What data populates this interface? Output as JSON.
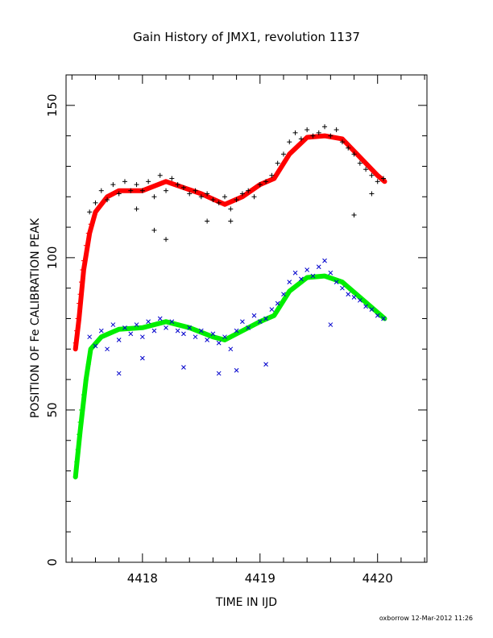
{
  "chart_data": {
    "type": "scatter",
    "title": "Gain History of JMX1, revolution 1137",
    "xlabel": "TIME IN IJD",
    "ylabel": "POSITION OF Fe CALIBRATION PEAK",
    "xlim": [
      4417.35,
      4420.42
    ],
    "ylim": [
      0,
      160
    ],
    "x_ticks": [
      "4418",
      "4419",
      "4420"
    ],
    "y_ticks": [
      "0",
      "50",
      "100",
      "150"
    ],
    "grid": false,
    "footer": "oxborrow 12-Mar-2012 11:26",
    "series": [
      {
        "marker": "+",
        "color": "#000000",
        "points": [
          [
            4417.55,
            115
          ],
          [
            4417.6,
            118
          ],
          [
            4417.65,
            122
          ],
          [
            4417.7,
            119
          ],
          [
            4417.75,
            124
          ],
          [
            4417.8,
            121
          ],
          [
            4417.85,
            125
          ],
          [
            4417.9,
            122
          ],
          [
            4417.95,
            124
          ],
          [
            4418.0,
            122
          ],
          [
            4418.05,
            125
          ],
          [
            4418.1,
            120
          ],
          [
            4418.15,
            127
          ],
          [
            4418.2,
            122
          ],
          [
            4418.25,
            126
          ],
          [
            4418.3,
            124
          ],
          [
            4418.35,
            123
          ],
          [
            4418.4,
            121
          ],
          [
            4418.45,
            122
          ],
          [
            4418.5,
            120
          ],
          [
            4418.55,
            121
          ],
          [
            4418.6,
            119
          ],
          [
            4418.65,
            118
          ],
          [
            4418.7,
            120
          ],
          [
            4418.75,
            116
          ],
          [
            4418.8,
            119
          ],
          [
            4418.85,
            121
          ],
          [
            4418.9,
            122
          ],
          [
            4418.95,
            120
          ],
          [
            4419.0,
            124
          ],
          [
            4419.05,
            125
          ],
          [
            4419.1,
            127
          ],
          [
            4419.15,
            131
          ],
          [
            4419.2,
            134
          ],
          [
            4419.25,
            138
          ],
          [
            4419.3,
            141
          ],
          [
            4419.35,
            139
          ],
          [
            4419.4,
            142
          ],
          [
            4419.45,
            140
          ],
          [
            4419.5,
            141
          ],
          [
            4419.55,
            143
          ],
          [
            4419.6,
            140
          ],
          [
            4419.65,
            142
          ],
          [
            4419.7,
            138
          ],
          [
            4419.75,
            136
          ],
          [
            4419.8,
            134
          ],
          [
            4419.85,
            131
          ],
          [
            4419.9,
            129
          ],
          [
            4419.95,
            127
          ],
          [
            4420.0,
            125
          ],
          [
            4420.05,
            126
          ],
          [
            4417.95,
            116
          ],
          [
            4418.1,
            109
          ],
          [
            4418.2,
            106
          ],
          [
            4418.55,
            112
          ],
          [
            4418.75,
            112
          ],
          [
            4419.8,
            114
          ],
          [
            4419.95,
            121
          ]
        ]
      },
      {
        "marker": "x",
        "color": "#0000cc",
        "points": [
          [
            4417.55,
            74
          ],
          [
            4417.6,
            71
          ],
          [
            4417.65,
            76
          ],
          [
            4417.7,
            70
          ],
          [
            4417.75,
            78
          ],
          [
            4417.8,
            73
          ],
          [
            4417.85,
            77
          ],
          [
            4417.9,
            75
          ],
          [
            4417.95,
            78
          ],
          [
            4418.0,
            74
          ],
          [
            4418.05,
            79
          ],
          [
            4418.1,
            76
          ],
          [
            4418.15,
            80
          ],
          [
            4418.2,
            77
          ],
          [
            4418.25,
            79
          ],
          [
            4418.3,
            76
          ],
          [
            4418.35,
            75
          ],
          [
            4418.4,
            77
          ],
          [
            4418.45,
            74
          ],
          [
            4418.5,
            76
          ],
          [
            4418.55,
            73
          ],
          [
            4418.6,
            75
          ],
          [
            4418.65,
            72
          ],
          [
            4418.7,
            74
          ],
          [
            4418.75,
            70
          ],
          [
            4418.8,
            76
          ],
          [
            4418.85,
            79
          ],
          [
            4418.9,
            77
          ],
          [
            4418.95,
            81
          ],
          [
            4419.0,
            79
          ],
          [
            4419.05,
            80
          ],
          [
            4419.1,
            83
          ],
          [
            4419.15,
            85
          ],
          [
            4419.2,
            88
          ],
          [
            4419.25,
            92
          ],
          [
            4419.3,
            95
          ],
          [
            4419.35,
            93
          ],
          [
            4419.4,
            96
          ],
          [
            4419.45,
            94
          ],
          [
            4419.5,
            97
          ],
          [
            4419.55,
            99
          ],
          [
            4419.6,
            95
          ],
          [
            4419.65,
            92
          ],
          [
            4419.7,
            90
          ],
          [
            4419.75,
            88
          ],
          [
            4419.8,
            87
          ],
          [
            4419.85,
            86
          ],
          [
            4419.9,
            84
          ],
          [
            4419.95,
            83
          ],
          [
            4420.0,
            81
          ],
          [
            4420.05,
            80
          ],
          [
            4417.8,
            62
          ],
          [
            4418.0,
            67
          ],
          [
            4418.35,
            64
          ],
          [
            4418.65,
            62
          ],
          [
            4418.8,
            63
          ],
          [
            4419.05,
            65
          ],
          [
            4419.6,
            78
          ]
        ]
      },
      {
        "marker": "line",
        "color": "#ff0000",
        "points": [
          [
            4417.43,
            70
          ],
          [
            4417.46,
            80
          ],
          [
            4417.5,
            96
          ],
          [
            4417.55,
            108
          ],
          [
            4417.6,
            115
          ],
          [
            4417.7,
            120
          ],
          [
            4417.8,
            122
          ],
          [
            4418.0,
            122
          ],
          [
            4418.2,
            125
          ],
          [
            4418.35,
            123
          ],
          [
            4418.5,
            121
          ],
          [
            4418.7,
            117.5
          ],
          [
            4418.85,
            120
          ],
          [
            4419.0,
            124
          ],
          [
            4419.12,
            126
          ],
          [
            4419.25,
            134
          ],
          [
            4419.4,
            139.5
          ],
          [
            4419.55,
            140
          ],
          [
            4419.7,
            139
          ],
          [
            4419.85,
            133
          ],
          [
            4420.0,
            127
          ],
          [
            4420.06,
            125
          ]
        ]
      },
      {
        "marker": "line",
        "color": "#00ee00",
        "points": [
          [
            4417.43,
            28
          ],
          [
            4417.47,
            43
          ],
          [
            4417.52,
            60
          ],
          [
            4417.56,
            70
          ],
          [
            4417.65,
            74
          ],
          [
            4417.8,
            76.5
          ],
          [
            4418.0,
            77
          ],
          [
            4418.2,
            79
          ],
          [
            4418.4,
            77
          ],
          [
            4418.6,
            74
          ],
          [
            4418.7,
            73
          ],
          [
            4418.85,
            76
          ],
          [
            4419.0,
            79
          ],
          [
            4419.12,
            81
          ],
          [
            4419.25,
            89
          ],
          [
            4419.4,
            93.5
          ],
          [
            4419.55,
            94
          ],
          [
            4419.7,
            92
          ],
          [
            4419.85,
            87
          ],
          [
            4420.0,
            82
          ],
          [
            4420.06,
            80
          ]
        ]
      },
      {
        "marker": "+",
        "color": "#ff0000",
        "points": [
          [
            4417.43,
            72
          ],
          [
            4417.44,
            76
          ],
          [
            4417.45,
            80
          ],
          [
            4417.46,
            85
          ],
          [
            4417.47,
            88
          ],
          [
            4417.48,
            92
          ],
          [
            4417.49,
            96
          ],
          [
            4417.5,
            99
          ],
          [
            4417.52,
            104
          ],
          [
            4417.54,
            108
          ],
          [
            4417.56,
            111
          ]
        ]
      },
      {
        "marker": "+",
        "color": "#00ee00",
        "points": [
          [
            4417.43,
            28
          ],
          [
            4417.44,
            33
          ],
          [
            4417.45,
            37
          ],
          [
            4417.46,
            42
          ],
          [
            4417.47,
            46
          ],
          [
            4417.48,
            50
          ],
          [
            4417.5,
            55
          ],
          [
            4417.52,
            60
          ],
          [
            4417.54,
            65
          ]
        ]
      }
    ]
  }
}
